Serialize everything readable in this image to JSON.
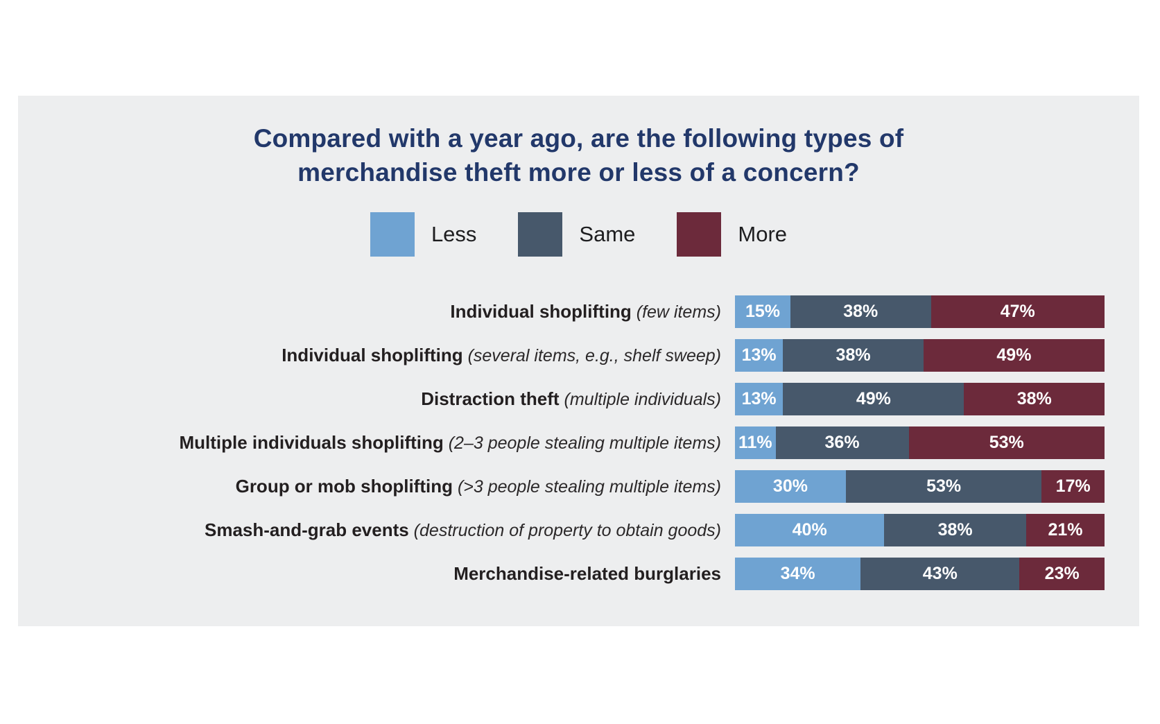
{
  "page": {
    "background_color": "#FFFFFF",
    "panel_background_color": "#EDEEEF"
  },
  "chart_data": {
    "type": "bar",
    "orientation": "horizontal",
    "stacked": true,
    "value_unit": "%",
    "value_suffix": "%",
    "xlim": [
      0,
      100
    ],
    "grid": false,
    "legend_position": "top-center",
    "title": "Compared with a year ago, are the following types of merchandise theft more or less of a concern?",
    "title_lines": [
      "Compared with a year ago, are the following types of",
      "merchandise theft more or less of a concern?"
    ],
    "title_color": "#22386A",
    "legend": [
      {
        "label": "Less",
        "color": "#6FA3D2"
      },
      {
        "label": "Same",
        "color": "#47586B"
      },
      {
        "label": "More",
        "color": "#6C2A3B"
      }
    ],
    "categories": [
      "Individual shoplifting (few items)",
      "Individual shoplifting (several items, e.g., shelf sweep)",
      "Distraction theft (multiple individuals)",
      "Multiple individuals shoplifting (2–3 people stealing multiple items)",
      "Group or mob shoplifting (>3 people stealing multiple items)",
      "Smash-and-grab events (destruction of property to obtain goods)",
      "Merchandise-related burglaries"
    ],
    "series": [
      {
        "name": "Less",
        "values": [
          15,
          13,
          13,
          11,
          30,
          40,
          34
        ]
      },
      {
        "name": "Same",
        "values": [
          38,
          38,
          49,
          36,
          53,
          38,
          43
        ]
      },
      {
        "name": "More",
        "values": [
          47,
          49,
          38,
          53,
          17,
          21,
          23
        ]
      }
    ],
    "rows": [
      {
        "label": "Individual shoplifting",
        "note": "(few items)",
        "values": [
          15,
          38,
          47
        ]
      },
      {
        "label": "Individual shoplifting",
        "note": "(several items, e.g., shelf sweep)",
        "values": [
          13,
          38,
          49
        ]
      },
      {
        "label": "Distraction theft",
        "note": "(multiple individuals)",
        "values": [
          13,
          49,
          38
        ]
      },
      {
        "label": "Multiple individuals shoplifting",
        "note": "(2–3 people stealing multiple items)",
        "values": [
          11,
          36,
          53
        ]
      },
      {
        "label": "Group or mob shoplifting",
        "note": "(>3 people stealing multiple items)",
        "values": [
          30,
          53,
          17
        ]
      },
      {
        "label": "Smash-and-grab events",
        "note": "(destruction of property to obtain goods)",
        "values": [
          40,
          38,
          21
        ]
      },
      {
        "label": "Merchandise-related burglaries",
        "note": "",
        "values": [
          34,
          43,
          23
        ]
      }
    ]
  }
}
